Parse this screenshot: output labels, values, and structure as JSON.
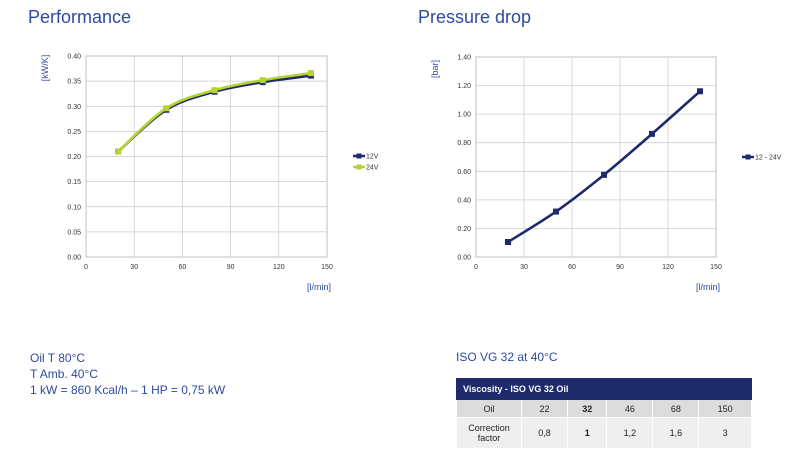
{
  "performance": {
    "title": "Performance",
    "chart_data": {
      "type": "line",
      "x": [
        20,
        50,
        80,
        110,
        140
      ],
      "series": [
        {
          "name": "12V",
          "values": [
            0.21,
            0.293,
            0.329,
            0.348,
            0.361
          ],
          "color": "#1f2a6b"
        },
        {
          "name": "24V",
          "values": [
            0.21,
            0.296,
            0.332,
            0.352,
            0.366
          ],
          "color": "#b5d334"
        }
      ],
      "xlim": [
        0,
        150
      ],
      "ylim": [
        0,
        0.4
      ],
      "xticks": [
        "0",
        "30",
        "60",
        "90",
        "120",
        "150"
      ],
      "yticks": [
        "0.00",
        "0.05",
        "0.10",
        "0.15",
        "0.20",
        "0.25",
        "0.30",
        "0.35",
        "0.40"
      ],
      "xlabel": "[l/min]",
      "ylabel": "[kW/K]",
      "grid": true,
      "legend": "right"
    }
  },
  "pressure": {
    "title": "Pressure drop",
    "chart_data": {
      "type": "line",
      "x": [
        20,
        50,
        80,
        110,
        140
      ],
      "series": [
        {
          "name": "12 - 24V",
          "values": [
            0.105,
            0.318,
            0.575,
            0.862,
            1.16
          ],
          "color": "#1f2a6b"
        }
      ],
      "xlim": [
        0,
        150
      ],
      "ylim": [
        0,
        1.4
      ],
      "xticks": [
        "0",
        "30",
        "60",
        "90",
        "120",
        "150"
      ],
      "yticks": [
        "0.00",
        "0.20",
        "0.40",
        "0.60",
        "0.80",
        "1.00",
        "1.20",
        "1.40"
      ],
      "xlabel": "[l/min]",
      "ylabel": "[bar]",
      "grid": true,
      "legend": "right"
    }
  },
  "notes": {
    "line1": "Oil T 80°C",
    "line2": "T Amb. 40°C",
    "line3": "1 kW = 860 Kcal/h – 1 HP = 0,75 kW"
  },
  "viscosity": {
    "heading": "ISO VG 32 at 40°C",
    "table_title": "Viscosity - ISO VG 32 Oil",
    "row1_label": "Oil",
    "row1_values": [
      "22",
      "32",
      "46",
      "68",
      "150"
    ],
    "row2_label_line1": "Correction",
    "row2_label_line2": "factor",
    "row2_values": [
      "0,8",
      "1",
      "1,2",
      "1,6",
      "3"
    ]
  }
}
